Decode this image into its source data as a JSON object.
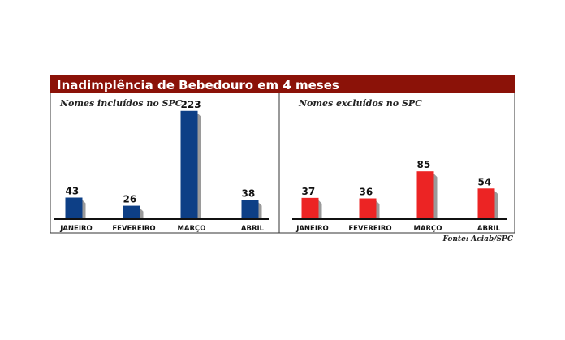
{
  "title": "Inadimplência de Bebedouro em 4 meses",
  "source": "Fonte: Aciab/SPC",
  "colors": {
    "title_bg": "#8b1208",
    "left_bar": "#0d3f86",
    "right_bar": "#ec2424",
    "shadow": "#9a9a9a"
  },
  "chart_data": [
    {
      "type": "bar",
      "title": "Nomes incluídos no SPC",
      "categories": [
        "JANEIRO",
        "FEVEREIRO",
        "MARÇO",
        "ABRIL"
      ],
      "values": [
        43,
        26,
        223,
        38
      ],
      "data_labels": [
        "43",
        "26",
        "223",
        "38"
      ],
      "color": "#0d3f86",
      "grid": false
    },
    {
      "type": "bar",
      "title": "Nomes excluídos no SPC",
      "categories": [
        "JANEIRO",
        "FEVEREIRO",
        "MARÇO",
        "ABRIL"
      ],
      "values": [
        37,
        36,
        85,
        54
      ],
      "data_labels": [
        "37",
        "36",
        "85",
        "54"
      ],
      "color": "#ec2424",
      "grid": false
    }
  ]
}
